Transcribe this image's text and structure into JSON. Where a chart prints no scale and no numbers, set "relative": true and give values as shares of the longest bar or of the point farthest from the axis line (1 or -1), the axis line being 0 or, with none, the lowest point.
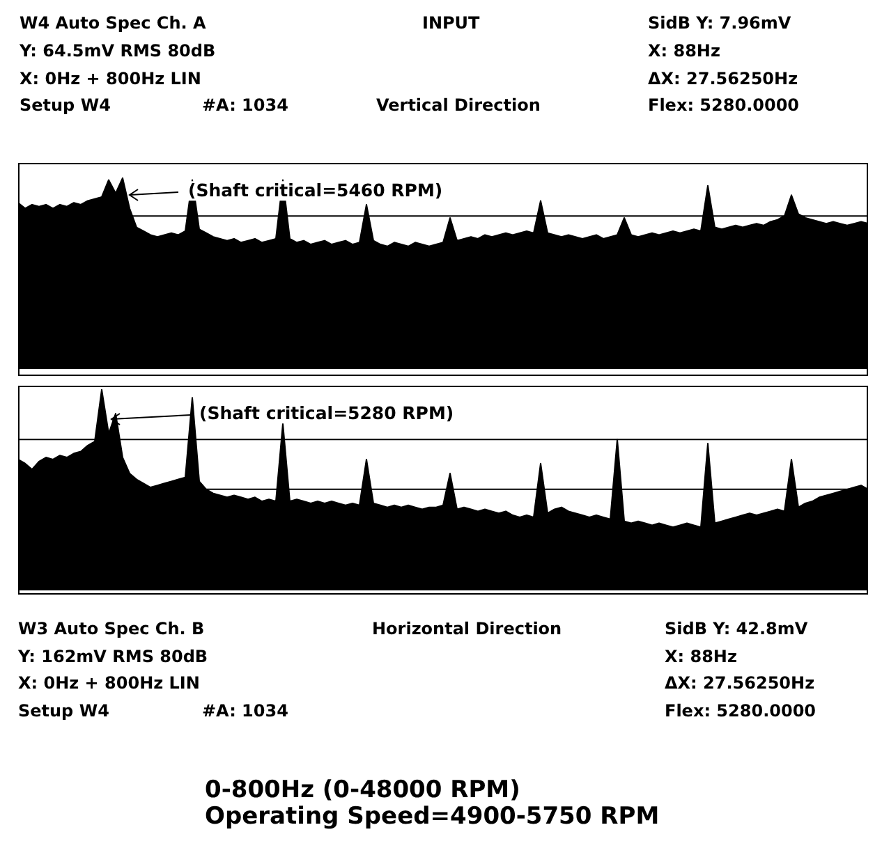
{
  "chart_data": [
    {
      "type": "area",
      "relative": true,
      "legend": false,
      "categories": [
        null,
        null,
        null,
        null,
        null,
        null,
        null,
        null,
        null,
        null,
        null,
        null,
        null,
        null,
        null,
        null,
        null,
        null,
        null,
        null,
        null,
        null,
        null,
        null,
        null,
        null,
        null,
        null,
        null,
        null,
        null,
        null,
        null,
        null,
        null,
        null,
        null,
        null,
        null,
        null,
        null,
        null,
        null,
        null,
        null,
        null,
        null,
        null,
        null,
        null,
        null,
        null,
        null,
        null,
        null,
        null,
        null,
        null,
        null,
        null,
        null,
        null,
        null,
        null,
        null,
        null,
        null,
        null,
        null,
        null,
        null,
        null,
        null,
        null,
        null,
        null,
        null,
        null,
        null,
        null,
        null,
        null,
        null,
        null,
        null,
        null,
        null,
        null,
        null,
        null,
        null,
        null,
        null,
        null,
        null,
        null,
        null,
        null,
        null,
        null,
        null,
        null,
        null,
        null,
        null,
        null,
        null,
        null,
        null,
        null,
        null,
        null,
        null,
        null,
        null,
        null,
        null,
        null,
        null,
        null,
        null,
        null,
        null
      ],
      "series": [
        {
          "color": "#000000",
          "values": [
            0.87,
            0.84,
            0.86,
            0.85,
            0.86,
            0.84,
            0.86,
            0.85,
            0.87,
            0.86,
            0.88,
            0.89,
            0.9,
            0.99,
            0.92,
            1,
            0.84,
            0.74,
            0.72,
            0.7,
            0.69,
            0.7,
            0.71,
            0.7,
            0.72,
            0.99,
            0.73,
            0.71,
            0.69,
            0.68,
            0.67,
            0.68,
            0.66,
            0.67,
            0.68,
            0.66,
            0.67,
            0.68,
            0.99,
            0.68,
            0.66,
            0.67,
            0.65,
            0.66,
            0.67,
            0.65,
            0.66,
            0.67,
            0.65,
            0.66,
            0.86,
            0.67,
            0.65,
            0.64,
            0.66,
            0.65,
            0.64,
            0.66,
            0.65,
            0.64,
            0.65,
            0.66,
            0.79,
            0.67,
            0.68,
            0.69,
            0.68,
            0.7,
            0.69,
            0.7,
            0.71,
            0.7,
            0.71,
            0.72,
            0.71,
            0.88,
            0.71,
            0.7,
            0.69,
            0.7,
            0.69,
            0.68,
            0.69,
            0.7,
            0.68,
            0.69,
            0.7,
            0.79,
            0.7,
            0.69,
            0.7,
            0.71,
            0.7,
            0.71,
            0.72,
            0.71,
            0.72,
            0.73,
            0.72,
            0.96,
            0.74,
            0.73,
            0.74,
            0.75,
            0.74,
            0.75,
            0.76,
            0.75,
            0.77,
            0.78,
            0.8,
            0.91,
            0.81,
            0.79,
            0.78,
            0.77,
            0.76,
            0.77,
            0.76,
            0.75,
            0.76,
            0.77,
            0.76
          ]
        }
      ],
      "ref_lines": [
        {
          "axis": "y",
          "value": 0.8,
          "color": "#000000"
        }
      ],
      "annotations": [
        "W4 Auto Spec Ch. A",
        "INPUT",
        "SidB Y: 7.96mV",
        "Y: 64.5mV RMS 80dB",
        "X: 88Hz",
        "X: 0Hz + 800Hz LIN",
        "ΔX: 27.56250Hz",
        "Setup W4",
        "#A: 1034",
        "Vertical Direction",
        "Flex: 5280.0000",
        "(Shaft critical=5460 RPM)"
      ]
    },
    {
      "type": "area",
      "relative": true,
      "legend": false,
      "categories": [
        null,
        null,
        null,
        null,
        null,
        null,
        null,
        null,
        null,
        null,
        null,
        null,
        null,
        null,
        null,
        null,
        null,
        null,
        null,
        null,
        null,
        null,
        null,
        null,
        null,
        null,
        null,
        null,
        null,
        null,
        null,
        null,
        null,
        null,
        null,
        null,
        null,
        null,
        null,
        null,
        null,
        null,
        null,
        null,
        null,
        null,
        null,
        null,
        null,
        null,
        null,
        null,
        null,
        null,
        null,
        null,
        null,
        null,
        null,
        null,
        null,
        null,
        null,
        null,
        null,
        null,
        null,
        null,
        null,
        null,
        null,
        null,
        null,
        null,
        null,
        null,
        null,
        null,
        null,
        null,
        null,
        null,
        null,
        null,
        null,
        null,
        null,
        null,
        null,
        null,
        null,
        null,
        null,
        null,
        null,
        null,
        null,
        null,
        null,
        null,
        null,
        null,
        null,
        null,
        null,
        null,
        null,
        null,
        null,
        null,
        null,
        null,
        null,
        null,
        null,
        null,
        null,
        null,
        null,
        null,
        null,
        null,
        null
      ],
      "series": [
        {
          "color": "#000000",
          "values": [
            0.65,
            0.63,
            0.6,
            0.64,
            0.66,
            0.65,
            0.67,
            0.66,
            0.68,
            0.69,
            0.72,
            0.74,
            1,
            0.78,
            0.88,
            0.66,
            0.58,
            0.55,
            0.53,
            0.51,
            0.52,
            0.53,
            0.54,
            0.55,
            0.56,
            0.96,
            0.54,
            0.5,
            0.48,
            0.47,
            0.46,
            0.47,
            0.46,
            0.45,
            0.46,
            0.44,
            0.45,
            0.44,
            0.83,
            0.44,
            0.45,
            0.44,
            0.43,
            0.44,
            0.43,
            0.44,
            0.43,
            0.42,
            0.43,
            0.42,
            0.65,
            0.43,
            0.42,
            0.41,
            0.42,
            0.41,
            0.42,
            0.41,
            0.4,
            0.41,
            0.41,
            0.42,
            0.58,
            0.4,
            0.41,
            0.4,
            0.39,
            0.4,
            0.39,
            0.38,
            0.39,
            0.37,
            0.36,
            0.37,
            0.36,
            0.63,
            0.38,
            0.4,
            0.41,
            0.39,
            0.38,
            0.37,
            0.36,
            0.37,
            0.36,
            0.35,
            0.75,
            0.34,
            0.33,
            0.34,
            0.33,
            0.32,
            0.33,
            0.32,
            0.31,
            0.32,
            0.33,
            0.32,
            0.31,
            0.73,
            0.33,
            0.34,
            0.35,
            0.36,
            0.37,
            0.38,
            0.37,
            0.38,
            0.39,
            0.4,
            0.39,
            0.65,
            0.41,
            0.43,
            0.44,
            0.46,
            0.47,
            0.48,
            0.49,
            0.5,
            0.51,
            0.52,
            0.5
          ]
        }
      ],
      "ref_lines": [
        {
          "axis": "y",
          "value": 0.75,
          "color": "#000000"
        },
        {
          "axis": "y",
          "value": 0.5,
          "color": "#000000"
        }
      ],
      "annotations": [
        "(Shaft critical=5280 RPM)",
        "W3 Auto Spec Ch. B",
        "Horizontal Direction",
        "SidB Y: 42.8mV",
        "Y: 162mV RMS 80dB",
        "X: 88Hz",
        "X: 0Hz + 800Hz LIN",
        "ΔX: 27.56250Hz",
        "Setup W4",
        "#A: 1034",
        "Flex: 5280.0000",
        "0-800Hz (0-48000 RPM)",
        "Operating Speed=4900-5750 RPM"
      ]
    }
  ]
}
